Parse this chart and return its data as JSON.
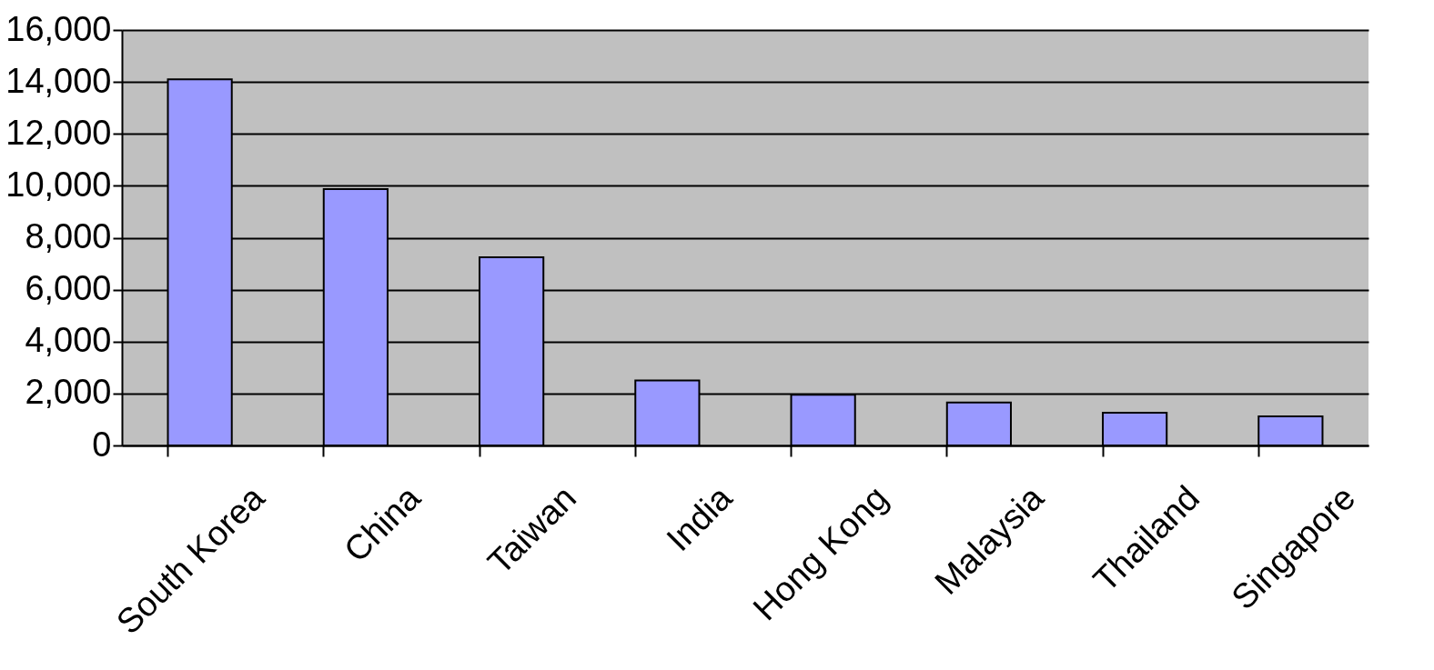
{
  "chart_data": {
    "type": "bar",
    "categories": [
      "South Korea",
      "China",
      "Taiwan",
      "India",
      "Hong Kong",
      "Malaysia",
      "Thailand",
      "Singapore"
    ],
    "values": [
      14100,
      9870,
      7250,
      2500,
      1950,
      1650,
      1260,
      1120
    ],
    "color": "#9999ff",
    "ylim": [
      0,
      16000
    ],
    "yticks": [
      0,
      {
        "value": 2000,
        "label": "2,000"
      },
      {
        "value": 4000,
        "label": "4,000"
      },
      {
        "value": 6000,
        "label": "6,000"
      },
      {
        "value": 8000,
        "label": "8,000"
      },
      {
        "value": 10000,
        "label": "10,000"
      },
      {
        "value": 12000,
        "label": "12,000"
      },
      {
        "value": 14000,
        "label": "14,000"
      },
      {
        "value": 16000,
        "label": "16,000"
      }
    ],
    "grid": "y"
  }
}
